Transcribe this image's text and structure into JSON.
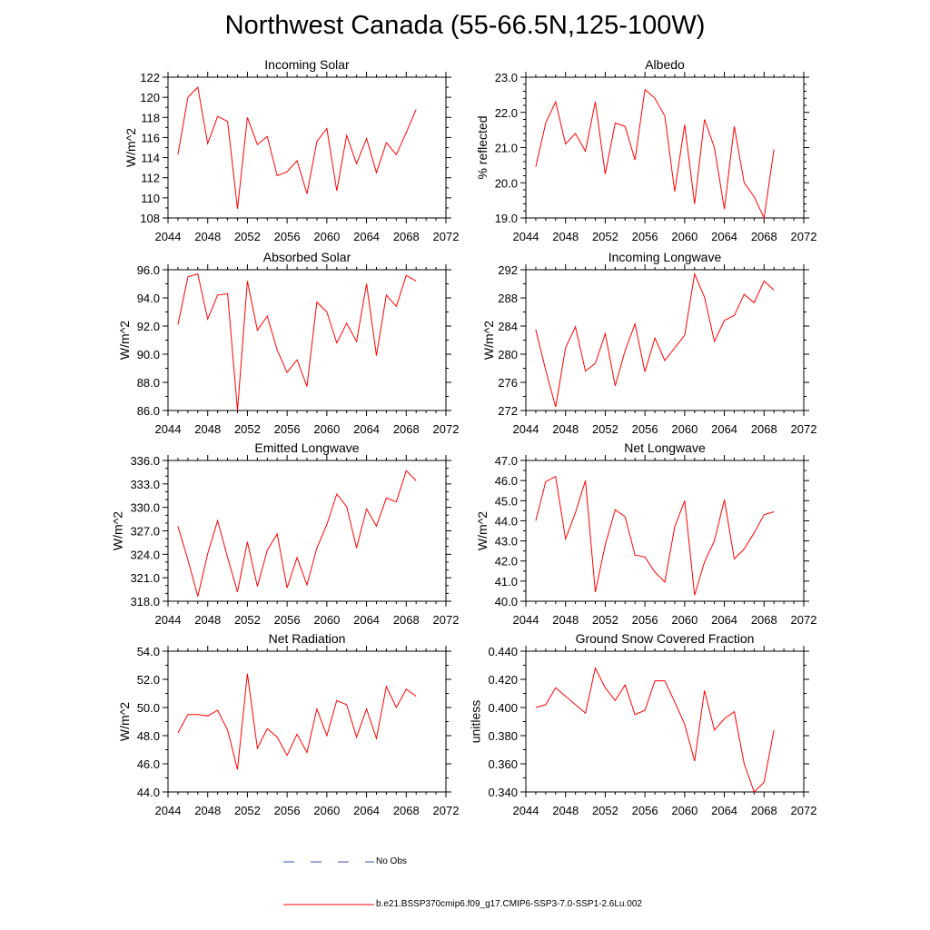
{
  "title": "Northwest Canada (55-66.5N,125-100W)",
  "legend": [
    {
      "label": "No Obs",
      "color": "#3b4fb8",
      "style": "dashed"
    },
    {
      "label": "b.e21.BSSP370cmip6.f09_g17.CMIP6-SSP3-7.0-SSP1-2.6Lu.002",
      "color": "#ff0000",
      "style": "solid"
    }
  ],
  "line_color": "#ff0000",
  "chart_data": [
    {
      "type": "line",
      "title": "Incoming Solar",
      "ylabel": "W/m^2",
      "xlim": [
        2044,
        2072
      ],
      "xticks": [
        "2044",
        "2048",
        "2052",
        "2056",
        "2060",
        "2064",
        "2068",
        "2072"
      ],
      "ylim": [
        108,
        122
      ],
      "yticks": [
        "108",
        "110",
        "112",
        "114",
        "116",
        "118",
        "120",
        "122"
      ],
      "minor_y": 1,
      "x": [
        2045,
        2046,
        2047,
        2048,
        2049,
        2050,
        2051,
        2052,
        2053,
        2054,
        2055,
        2056,
        2057,
        2058,
        2059,
        2060,
        2061,
        2062,
        2063,
        2064,
        2065,
        2066,
        2067,
        2068,
        2069
      ],
      "values": [
        114.3,
        120.0,
        121.0,
        115.4,
        118.1,
        117.6,
        108.9,
        118.0,
        115.3,
        116.1,
        112.2,
        112.6,
        113.7,
        110.4,
        115.6,
        116.9,
        110.7,
        116.2,
        113.4,
        115.9,
        112.5,
        115.5,
        114.3,
        116.5,
        118.8
      ]
    },
    {
      "type": "line",
      "title": "Albedo",
      "ylabel": "% reflected",
      "xlim": [
        2044,
        2072
      ],
      "xticks": [
        "2044",
        "2048",
        "2052",
        "2056",
        "2060",
        "2064",
        "2068",
        "2072"
      ],
      "ylim": [
        19.0,
        23.0
      ],
      "yticks": [
        "19.0",
        "20.0",
        "21.0",
        "22.0",
        "23.0"
      ],
      "minor_y": 0.2,
      "x": [
        2045,
        2046,
        2047,
        2048,
        2049,
        2050,
        2051,
        2052,
        2053,
        2054,
        2055,
        2056,
        2057,
        2058,
        2059,
        2060,
        2061,
        2062,
        2063,
        2064,
        2065,
        2066,
        2067,
        2068,
        2069
      ],
      "values": [
        20.45,
        21.7,
        22.3,
        21.1,
        21.4,
        20.9,
        22.3,
        20.25,
        21.7,
        21.6,
        20.65,
        22.65,
        22.4,
        21.9,
        19.75,
        21.65,
        19.4,
        21.8,
        21.0,
        19.25,
        21.6,
        20.0,
        19.6,
        19.0,
        20.95
      ]
    },
    {
      "type": "line",
      "title": "Absorbed Solar",
      "ylabel": "W/m^2",
      "xlim": [
        2044,
        2072
      ],
      "xticks": [
        "2044",
        "2048",
        "2052",
        "2056",
        "2060",
        "2064",
        "2068",
        "2072"
      ],
      "ylim": [
        86.0,
        96.0
      ],
      "yticks": [
        "86.0",
        "88.0",
        "90.0",
        "92.0",
        "94.0",
        "96.0"
      ],
      "minor_y": 1,
      "x": [
        2045,
        2046,
        2047,
        2048,
        2049,
        2050,
        2051,
        2052,
        2053,
        2054,
        2055,
        2056,
        2057,
        2058,
        2059,
        2060,
        2061,
        2062,
        2063,
        2064,
        2065,
        2066,
        2067,
        2068,
        2069
      ],
      "values": [
        92.1,
        95.5,
        95.7,
        92.5,
        94.2,
        94.3,
        86.0,
        95.2,
        91.7,
        92.7,
        90.3,
        88.7,
        89.6,
        87.7,
        93.7,
        93.0,
        90.8,
        92.2,
        90.9,
        95.0,
        89.9,
        94.2,
        93.4,
        95.6,
        95.2
      ]
    },
    {
      "type": "line",
      "title": "Incoming Longwave",
      "ylabel": "W/m^2",
      "xlim": [
        2044,
        2072
      ],
      "xticks": [
        "2044",
        "2048",
        "2052",
        "2056",
        "2060",
        "2064",
        "2068",
        "2072"
      ],
      "ylim": [
        272,
        292
      ],
      "yticks": [
        "272",
        "276",
        "280",
        "284",
        "288",
        "292"
      ],
      "minor_y": 2,
      "x": [
        2045,
        2046,
        2047,
        2048,
        2049,
        2050,
        2051,
        2052,
        2053,
        2054,
        2055,
        2056,
        2057,
        2058,
        2059,
        2060,
        2061,
        2062,
        2063,
        2064,
        2065,
        2066,
        2067,
        2068,
        2069
      ],
      "values": [
        283.5,
        277.7,
        272.5,
        280.9,
        283.9,
        277.6,
        278.7,
        282.9,
        275.5,
        280.5,
        284.3,
        277.5,
        282.3,
        279.1,
        280.9,
        282.7,
        291.4,
        288.1,
        281.8,
        284.8,
        285.5,
        288.5,
        287.3,
        290.4,
        289.1
      ]
    },
    {
      "type": "line",
      "title": "Emitted Longwave",
      "ylabel": "W/m^2",
      "xlim": [
        2044,
        2072
      ],
      "xticks": [
        "2044",
        "2048",
        "2052",
        "2056",
        "2060",
        "2064",
        "2068",
        "2072"
      ],
      "ylim": [
        318.0,
        336.0
      ],
      "yticks": [
        "318.0",
        "321.0",
        "324.0",
        "327.0",
        "330.0",
        "333.0",
        "336.0"
      ],
      "minor_y": 1,
      "x": [
        2045,
        2046,
        2047,
        2048,
        2049,
        2050,
        2051,
        2052,
        2053,
        2054,
        2055,
        2056,
        2057,
        2058,
        2059,
        2060,
        2061,
        2062,
        2063,
        2064,
        2065,
        2066,
        2067,
        2068,
        2069
      ],
      "values": [
        327.6,
        323.3,
        318.6,
        324.1,
        328.3,
        323.6,
        319.2,
        325.6,
        319.9,
        324.5,
        326.6,
        319.7,
        323.6,
        320.1,
        324.8,
        327.8,
        331.7,
        330.1,
        324.8,
        329.8,
        327.6,
        331.2,
        330.7,
        334.7,
        333.4
      ]
    },
    {
      "type": "line",
      "title": "Net Longwave",
      "ylabel": "W/m^2",
      "xlim": [
        2044,
        2072
      ],
      "xticks": [
        "2044",
        "2048",
        "2052",
        "2056",
        "2060",
        "2064",
        "2068",
        "2072"
      ],
      "ylim": [
        40.0,
        47.0
      ],
      "yticks": [
        "40.0",
        "41.0",
        "42.0",
        "43.0",
        "44.0",
        "45.0",
        "46.0",
        "47.0"
      ],
      "minor_y": 0.5,
      "x": [
        2045,
        2046,
        2047,
        2048,
        2049,
        2050,
        2051,
        2052,
        2053,
        2054,
        2055,
        2056,
        2057,
        2058,
        2059,
        2060,
        2061,
        2062,
        2063,
        2064,
        2065,
        2066,
        2067,
        2068,
        2069
      ],
      "values": [
        44.0,
        45.95,
        46.2,
        43.1,
        44.4,
        46.0,
        40.45,
        42.8,
        44.55,
        44.2,
        42.3,
        42.2,
        41.45,
        40.95,
        43.7,
        45.0,
        40.3,
        41.95,
        43.0,
        45.05,
        42.1,
        42.6,
        43.4,
        44.3,
        44.45
      ]
    },
    {
      "type": "line",
      "title": "Net Radiation",
      "ylabel": "W/m^2",
      "xlim": [
        2044,
        2072
      ],
      "xticks": [
        "2044",
        "2048",
        "2052",
        "2056",
        "2060",
        "2064",
        "2068",
        "2072"
      ],
      "ylim": [
        44.0,
        54.0
      ],
      "yticks": [
        "44.0",
        "46.0",
        "48.0",
        "50.0",
        "52.0",
        "54.0"
      ],
      "minor_y": 1,
      "x": [
        2045,
        2046,
        2047,
        2048,
        2049,
        2050,
        2051,
        2052,
        2053,
        2054,
        2055,
        2056,
        2057,
        2058,
        2059,
        2060,
        2061,
        2062,
        2063,
        2064,
        2065,
        2066,
        2067,
        2068,
        2069
      ],
      "values": [
        48.2,
        49.5,
        49.5,
        49.4,
        49.8,
        48.4,
        45.6,
        52.4,
        47.1,
        48.5,
        47.9,
        46.6,
        48.1,
        46.8,
        49.9,
        48.0,
        50.5,
        50.2,
        47.9,
        49.9,
        47.8,
        51.5,
        50.0,
        51.3,
        50.8
      ]
    },
    {
      "type": "line",
      "title": "Ground Snow Covered Fraction",
      "ylabel": "unitless",
      "xlim": [
        2044,
        2072
      ],
      "xticks": [
        "2044",
        "2048",
        "2052",
        "2056",
        "2060",
        "2064",
        "2068",
        "2072"
      ],
      "ylim": [
        0.34,
        0.44
      ],
      "yticks": [
        "0.340",
        "0.360",
        "0.380",
        "0.400",
        "0.420",
        "0.440"
      ],
      "minor_y": 0.01,
      "x": [
        2045,
        2046,
        2047,
        2048,
        2049,
        2050,
        2051,
        2052,
        2053,
        2054,
        2055,
        2056,
        2057,
        2058,
        2059,
        2060,
        2061,
        2062,
        2063,
        2064,
        2065,
        2066,
        2067,
        2068,
        2069
      ],
      "values": [
        0.4,
        0.402,
        0.414,
        0.408,
        0.402,
        0.396,
        0.428,
        0.414,
        0.405,
        0.416,
        0.395,
        0.398,
        0.419,
        0.419,
        0.404,
        0.388,
        0.362,
        0.412,
        0.384,
        0.392,
        0.397,
        0.36,
        0.34,
        0.347,
        0.384
      ]
    }
  ]
}
